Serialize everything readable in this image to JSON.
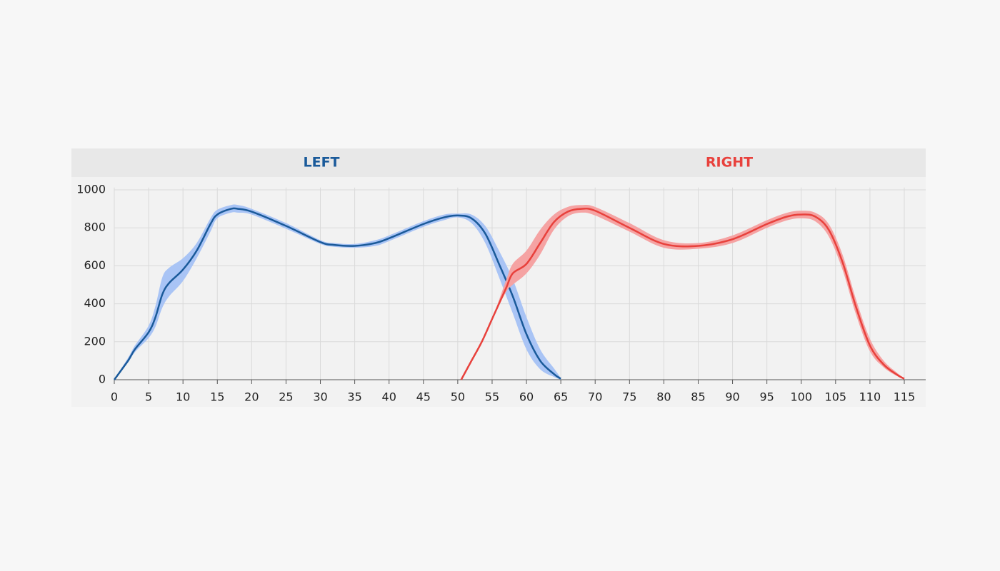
{
  "chart_data": {
    "type": "line",
    "xlim": [
      0,
      118
    ],
    "ylim": [
      0,
      1050
    ],
    "xticks": [
      0,
      5,
      10,
      15,
      20,
      25,
      30,
      35,
      40,
      45,
      50,
      55,
      60,
      65,
      70,
      75,
      80,
      85,
      90,
      95,
      100,
      105,
      110,
      115
    ],
    "yticks": [
      0,
      200,
      400,
      600,
      800,
      1000
    ],
    "grid": true,
    "series": [
      {
        "name": "LEFT",
        "color": "#1a5a9a",
        "band_color": "#a9c4f5",
        "x": [
          0,
          2,
          3,
          5,
          6,
          7,
          8,
          10,
          12,
          14,
          15,
          17,
          18,
          20,
          25,
          30,
          32,
          35,
          38,
          40,
          45,
          48,
          50,
          52,
          54,
          56,
          58,
          60,
          62,
          64,
          65
        ],
        "values": [
          0,
          100,
          160,
          250,
          330,
          450,
          510,
          580,
          680,
          820,
          870,
          900,
          900,
          885,
          810,
          725,
          710,
          705,
          720,
          745,
          820,
          855,
          865,
          850,
          770,
          610,
          440,
          240,
          100,
          30,
          5
        ],
        "upper": [
          5,
          115,
          180,
          285,
          390,
          540,
          590,
          640,
          720,
          850,
          895,
          920,
          920,
          900,
          825,
          735,
          720,
          715,
          735,
          760,
          835,
          870,
          875,
          870,
          810,
          680,
          530,
          330,
          160,
          60,
          10
        ],
        "lower": [
          0,
          90,
          145,
          220,
          280,
          380,
          440,
          520,
          640,
          780,
          850,
          880,
          880,
          870,
          795,
          715,
          700,
          695,
          705,
          730,
          805,
          840,
          855,
          825,
          720,
          540,
          350,
          160,
          55,
          15,
          0
        ]
      },
      {
        "name": "RIGHT",
        "color": "#e8413c",
        "band_color": "#f5a3a3",
        "x": [
          50.5,
          52,
          53.5,
          55,
          57,
          58,
          60,
          62,
          64,
          66,
          68,
          70,
          75,
          80,
          85,
          90,
          95,
          98,
          100,
          102,
          104,
          106,
          108,
          110,
          112,
          114,
          115
        ],
        "values": [
          0,
          100,
          200,
          320,
          480,
          560,
          610,
          720,
          830,
          885,
          900,
          890,
          800,
          715,
          705,
          740,
          820,
          860,
          870,
          860,
          790,
          620,
          380,
          180,
          80,
          25,
          5
        ],
        "upper": [
          0,
          100,
          200,
          320,
          520,
          610,
          680,
          790,
          870,
          910,
          920,
          910,
          825,
          735,
          720,
          760,
          840,
          880,
          890,
          880,
          820,
          660,
          420,
          215,
          100,
          35,
          8
        ],
        "lower": [
          0,
          100,
          200,
          320,
          460,
          500,
          560,
          660,
          790,
          860,
          880,
          865,
          780,
          695,
          690,
          720,
          800,
          840,
          850,
          835,
          755,
          580,
          340,
          150,
          65,
          18,
          2
        ]
      }
    ]
  }
}
